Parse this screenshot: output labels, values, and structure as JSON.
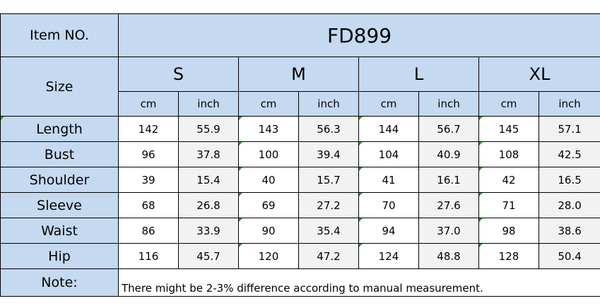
{
  "header": {
    "item_label": "Item NO.",
    "item_value": "FD899"
  },
  "sizes": {
    "label": "Size",
    "columns": [
      "S",
      "M",
      "L",
      "XL"
    ],
    "units": [
      "cm",
      "inch",
      "cm",
      "inch",
      "cm",
      "inch",
      "cm",
      "inch"
    ]
  },
  "rows": [
    {
      "label": "Length",
      "values": [
        "142",
        "55.9",
        "143",
        "56.3",
        "144",
        "56.7",
        "145",
        "57.1"
      ]
    },
    {
      "label": "Bust",
      "values": [
        "96",
        "37.8",
        "100",
        "39.4",
        "104",
        "40.9",
        "108",
        "42.5"
      ]
    },
    {
      "label": "Shoulder",
      "values": [
        "39",
        "15.4",
        "40",
        "15.7",
        "41",
        "16.1",
        "42",
        "16.5"
      ]
    },
    {
      "label": "Sleeve",
      "values": [
        "68",
        "26.8",
        "69",
        "27.2",
        "70",
        "27.6",
        "71",
        "28.0"
      ]
    },
    {
      "label": "Waist",
      "values": [
        "86",
        "33.9",
        "90",
        "35.4",
        "94",
        "37.0",
        "98",
        "38.6"
      ]
    },
    {
      "label": "Hip",
      "values": [
        "116",
        "45.7",
        "120",
        "47.2",
        "124",
        "48.8",
        "128",
        "50.4"
      ]
    }
  ],
  "note": {
    "label": "Note:",
    "text": "There might be 2-3% difference according to manual measurement."
  },
  "colors": {
    "header_blue": "#c5d9f1",
    "inch_grey": "#f2f2f2",
    "marker_green": "#2f9e2f"
  }
}
